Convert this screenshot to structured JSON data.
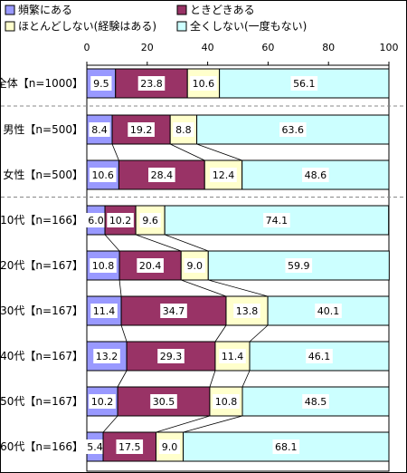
{
  "chart_data": {
    "type": "bar",
    "orientation": "horizontal",
    "stacked": "percent",
    "xlim": [
      0,
      100
    ],
    "x_ticks": [
      "0",
      "20",
      "40",
      "60",
      "80",
      "100"
    ],
    "grid": false,
    "legend_position": "top",
    "categories": [
      "全体【n=1000】",
      "男性【n=500】",
      "女性【n=500】",
      "10代【n=166】",
      "20代【n=167】",
      "30代【n=167】",
      "40代【n=167】",
      "50代【n=167】",
      "60代【n=166】"
    ],
    "series": [
      {
        "name": "頻繁にある",
        "color": "#9999ff",
        "values": [
          9.5,
          8.4,
          10.6,
          6.0,
          10.8,
          11.4,
          13.2,
          10.2,
          5.4
        ],
        "labels": [
          "9.5",
          "8.4",
          "10.6",
          "6.0",
          "10.8",
          "11.4",
          "13.2",
          "10.2",
          "5.4"
        ]
      },
      {
        "name": "ときどきある",
        "color": "#993366",
        "values": [
          23.8,
          19.2,
          28.4,
          10.2,
          20.4,
          34.7,
          29.3,
          30.5,
          17.5
        ],
        "labels": [
          "23.8",
          "19.2",
          "28.4",
          "10.2",
          "20.4",
          "34.7",
          "29.3",
          "30.5",
          "17.5"
        ]
      },
      {
        "name": "ほとんどしない(経験はある)",
        "color": "#ffffcc",
        "values": [
          10.6,
          8.8,
          12.4,
          9.6,
          9.0,
          13.8,
          11.4,
          10.8,
          9.0
        ],
        "labels": [
          "10.6",
          "8.8",
          "12.4",
          "9.6",
          "9.0",
          "13.8",
          "11.4",
          "10.8",
          "9.0"
        ]
      },
      {
        "name": "全くしない(一度もない)",
        "color": "#ccffff",
        "values": [
          56.1,
          63.6,
          48.6,
          74.1,
          59.9,
          40.1,
          46.1,
          48.5,
          68.1
        ],
        "labels": [
          "56.1",
          "63.6",
          "48.6",
          "74.1",
          "59.9",
          "40.1",
          "46.1",
          "48.5",
          "68.1"
        ]
      }
    ],
    "group_separators_after": [
      0,
      2
    ]
  }
}
